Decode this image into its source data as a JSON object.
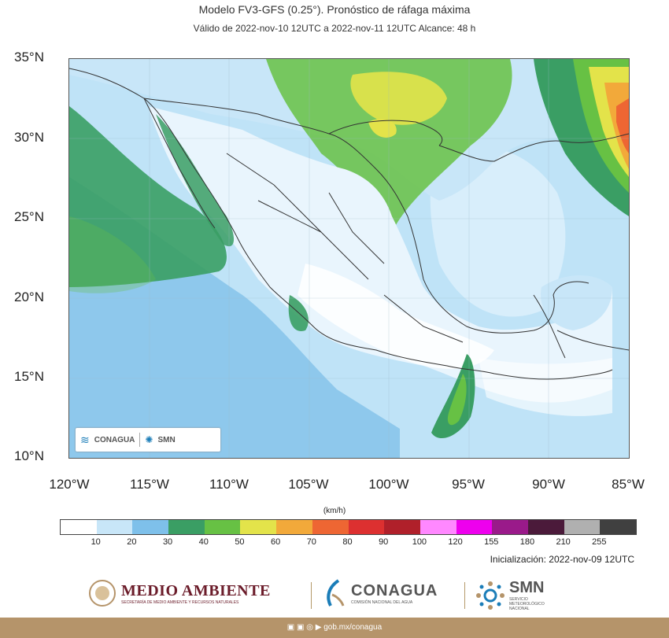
{
  "header": {
    "title": "Modelo FV3-GFS (0.25°). Pronóstico de ráfaga máxima",
    "subtitle": "Válido de 2022-nov-10 12UTC a 2022-nov-11 12UTC    Alcance: 48 h"
  },
  "map": {
    "lat_labels": [
      "35°N",
      "30°N",
      "25°N",
      "20°N",
      "15°N",
      "10°N"
    ],
    "lon_labels": [
      "120°W",
      "115°W",
      "110°W",
      "105°W",
      "100°W",
      "95°W",
      "90°W",
      "85°W"
    ],
    "inset_logos": {
      "conagua": "CONAGUA",
      "smn": "SMN"
    }
  },
  "colorbar": {
    "unit": "(km/h)",
    "colors": [
      "#ffffff",
      "#c8e6f8",
      "#7ec0ea",
      "#3a9e64",
      "#67c144",
      "#e3e34a",
      "#f2a93a",
      "#ee6633",
      "#dd3030",
      "#b0202a",
      "#ff88ff",
      "#ee00ee",
      "#9a1a8a",
      "#4b1a3a",
      "#b0b0b0",
      "#404040"
    ],
    "ticks": [
      "10",
      "20",
      "30",
      "40",
      "50",
      "60",
      "70",
      "80",
      "90",
      "100",
      "120",
      "155",
      "180",
      "210",
      "255"
    ]
  },
  "init_text": "Inicialización: 2022-nov-09 12UTC",
  "logos": {
    "medio_ambiente": "MEDIO AMBIENTE",
    "medio_ambiente_sub": "SECRETARÍA DE MEDIO AMBIENTE Y RECURSOS NATURALES",
    "conagua": "CONAGUA",
    "conagua_sub": "COMISIÓN NACIONAL DEL AGUA",
    "smn": "SMN",
    "smn_sub": "SERVICIO METEOROLÓGICO NACIONAL"
  },
  "footer": {
    "link": "gob.mx/conagua"
  }
}
